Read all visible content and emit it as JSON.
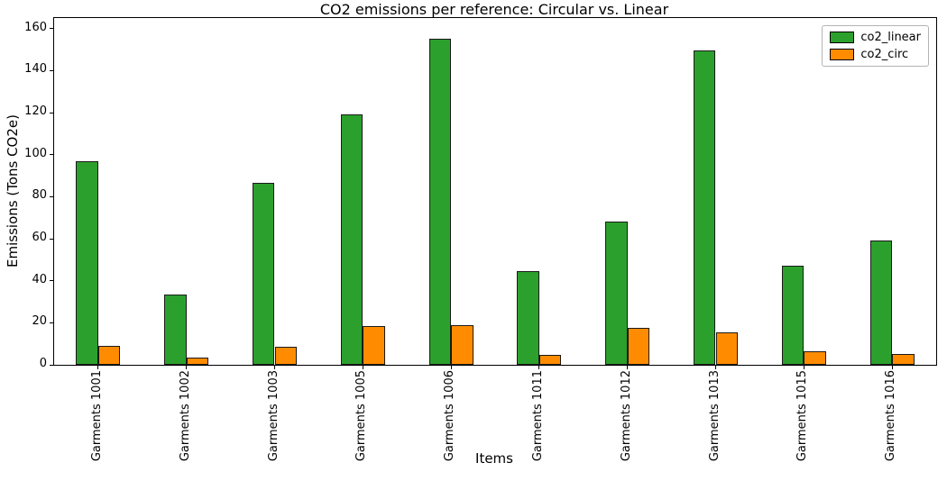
{
  "chart_data": {
    "type": "bar",
    "title": "CO2 emissions per reference: Circular vs. Linear",
    "xlabel": "Items",
    "ylabel": "Emissions (Tons CO2e)",
    "categories": [
      "Garments 1001",
      "Garments 1002",
      "Garments 1003",
      "Garments 1005",
      "Garments 1006",
      "Garments 1011",
      "Garments 1012",
      "Garments 1013",
      "Garments 1015",
      "Garments 1016"
    ],
    "series": [
      {
        "name": "co2_linear",
        "color": "#2ca02c",
        "values": [
          97,
          33.5,
          86.5,
          119,
          155,
          44.5,
          68,
          149.5,
          47,
          59
        ]
      },
      {
        "name": "co2_circ",
        "color": "#ff8c00",
        "values": [
          8.8,
          3.4,
          8.4,
          18.5,
          19,
          4.9,
          17.4,
          15.4,
          6.3,
          5.3
        ]
      }
    ],
    "ylim": [
      0,
      165
    ],
    "yticks": [
      0,
      20,
      40,
      60,
      80,
      100,
      120,
      140,
      160
    ],
    "legend_position": "upper right",
    "grid": false,
    "bar_edge_color": "#1a1a1a",
    "legend_border_color": "#b3b3b3",
    "background_color": "#ffffff"
  }
}
